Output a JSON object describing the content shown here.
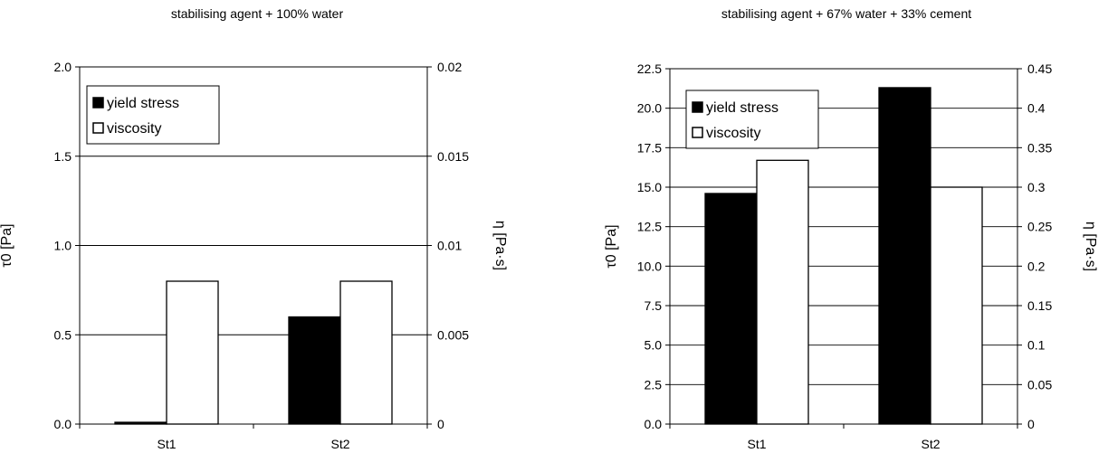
{
  "chart_data": [
    {
      "type": "bar",
      "title": "stabilising agent + 100% water",
      "categories": [
        "St1",
        "St2"
      ],
      "y_left": {
        "label": "τ0 [Pa]",
        "range": [
          0,
          2.0
        ],
        "ticks": [
          "0.0",
          "0.5",
          "1.0",
          "1.5",
          "2.0"
        ]
      },
      "y_right": {
        "label": "η [Pa·s]",
        "range": [
          0,
          0.02
        ],
        "ticks": [
          "0",
          "0.005",
          "0.01",
          "0.015",
          "0.02"
        ]
      },
      "series": [
        {
          "name": "yield stress",
          "axis": "left",
          "color": "#000000",
          "values": [
            0.01,
            0.6
          ]
        },
        {
          "name": "viscosity",
          "axis": "right",
          "color": "#ffffff",
          "values": [
            0.008,
            0.008
          ]
        }
      ],
      "grid": true,
      "legend_position": "top-left"
    },
    {
      "type": "bar",
      "title": "stabilising agent + 67% water + 33% cement",
      "categories": [
        "St1",
        "St2"
      ],
      "y_left": {
        "label": "τ0 [Pa]",
        "range": [
          0,
          22.5
        ],
        "ticks": [
          "0.0",
          "2.5",
          "5.0",
          "7.5",
          "10.0",
          "12.5",
          "15.0",
          "17.5",
          "20.0",
          "22.5"
        ]
      },
      "y_right": {
        "label": "η [Pa·s]",
        "range": [
          0,
          0.45
        ],
        "ticks": [
          "0",
          "0.05",
          "0.1",
          "0.15",
          "0.2",
          "0.25",
          "0.3",
          "0.35",
          "0.4",
          "0.45"
        ]
      },
      "series": [
        {
          "name": "yield stress",
          "axis": "left",
          "color": "#000000",
          "values": [
            14.6,
            21.3
          ]
        },
        {
          "name": "viscosity",
          "axis": "right",
          "color": "#ffffff",
          "values": [
            0.334,
            0.3
          ]
        }
      ],
      "grid": true,
      "legend_position": "top-left"
    }
  ]
}
